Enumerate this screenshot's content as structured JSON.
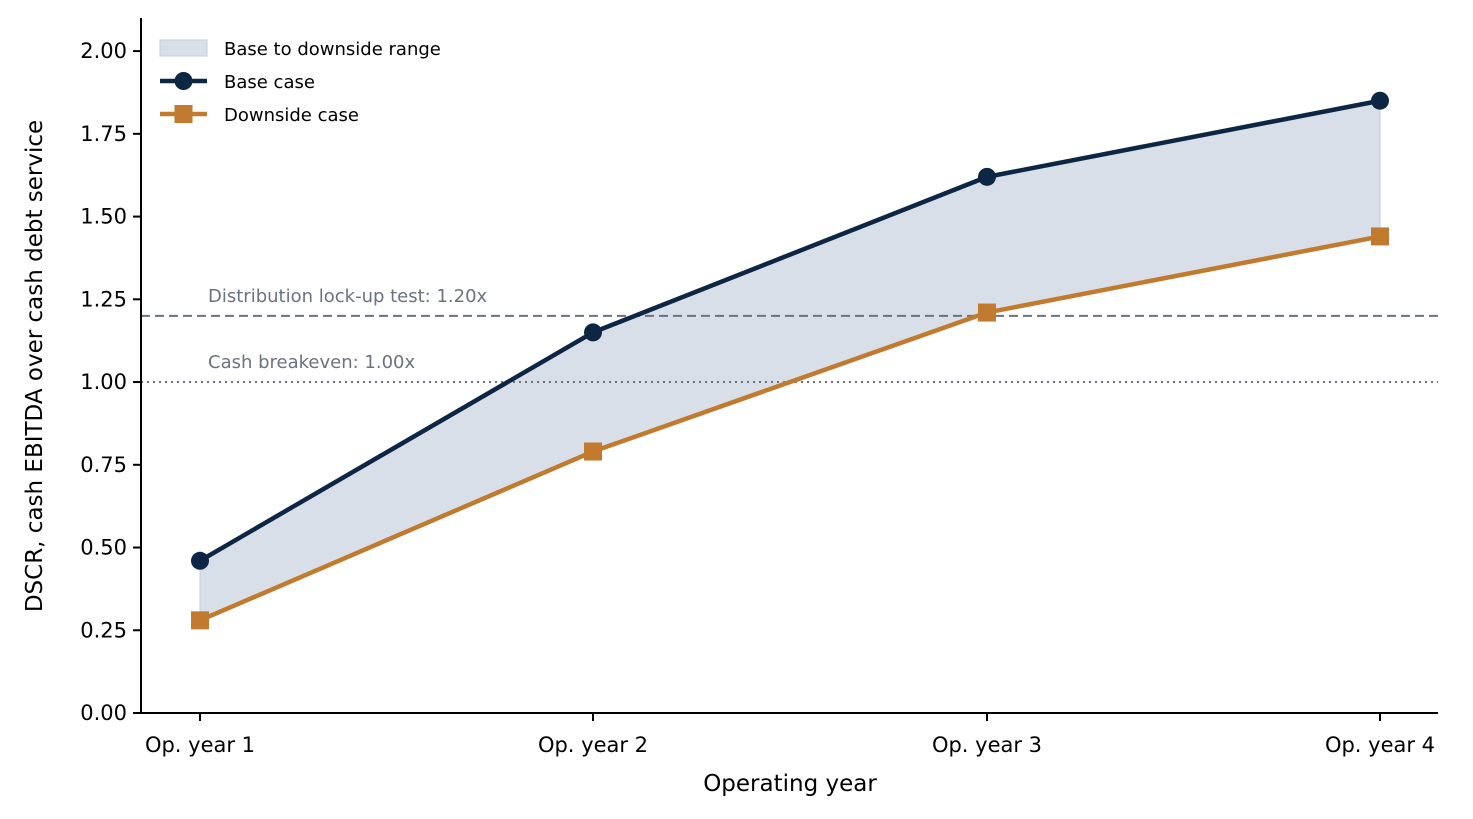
{
  "chart_data": {
    "type": "line",
    "title": "",
    "xlabel": "Operating year",
    "ylabel": "DSCR, cash EBITDA over cash debt service",
    "categories": [
      "Op. year 1",
      "Op. year 2",
      "Op. year 3",
      "Op. year 4"
    ],
    "ylim": [
      0,
      2.1
    ],
    "yticks": [
      0.0,
      0.25,
      0.5,
      0.75,
      1.0,
      1.25,
      1.5,
      1.75,
      2.0
    ],
    "ytick_labels": [
      "0.00",
      "0.25",
      "0.50",
      "0.75",
      "1.00",
      "1.25",
      "1.50",
      "1.75",
      "2.00"
    ],
    "series": [
      {
        "name": "Base case",
        "values": [
          0.46,
          1.15,
          1.62,
          1.85
        ],
        "color": "#0d2644",
        "marker": "circle"
      },
      {
        "name": "Downside case",
        "values": [
          0.28,
          0.79,
          1.21,
          1.44
        ],
        "color": "#c17a2e",
        "marker": "square"
      }
    ],
    "band": {
      "name": "Base to downside range",
      "color": "#d9dfe8"
    },
    "reference_lines": [
      {
        "label": "Distribution lock-up test: 1.20x",
        "value": 1.2,
        "style": "dashed",
        "color": "#6b7280"
      },
      {
        "label": "Cash breakeven: 1.00x",
        "value": 1.0,
        "style": "dotted",
        "color": "#6b7280"
      }
    ],
    "legend": {
      "position": "top-left",
      "entries": [
        "Base to downside range",
        "Base case",
        "Downside case"
      ]
    },
    "grid": false
  }
}
